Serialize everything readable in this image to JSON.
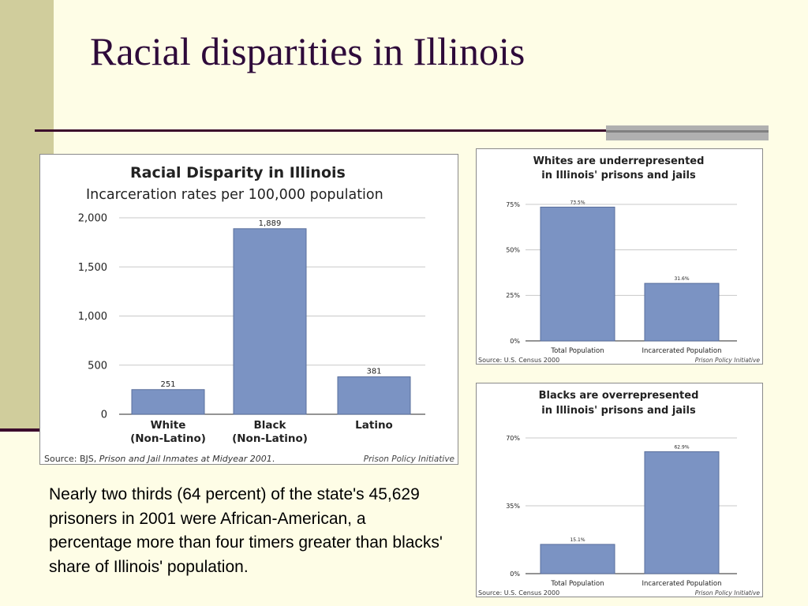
{
  "slide": {
    "title": "Racial disparities in Illinois",
    "body_text": "Nearly two thirds (64 percent) of the state's 45,629 prisoners in 2001 were African-American, a percentage more than four timers greater than blacks' share of Illinois' population."
  },
  "colors": {
    "bar_fill": "#7b93c3",
    "bar_stroke": "#5a6f9c",
    "title_color": "#2e0a3a",
    "background": "#fefde6",
    "left_band": "#d0cd9c"
  },
  "chart_data": [
    {
      "type": "bar",
      "title": "Racial Disparity in Illinois",
      "subtitle": "Incarceration rates per 100,000 population",
      "categories": [
        "White",
        "Black",
        "Latino"
      ],
      "category_sublabels": [
        "(Non-Latino)",
        "(Non-Latino)",
        ""
      ],
      "values": [
        251,
        1889,
        381
      ],
      "value_labels": [
        "251",
        "1,889",
        "381"
      ],
      "ylim": [
        0,
        2000
      ],
      "y_ticks": [
        0,
        500,
        1000,
        1500,
        2000
      ],
      "y_tick_labels": [
        "0",
        "500",
        "1,000",
        "1,500",
        "2,000"
      ],
      "grid": true,
      "source_prefix": "Source: BJS, ",
      "source_italic": "Prison and Jail Inmates at Midyear 2001",
      "source_suffix": ".",
      "credit": "Prison Policy Initiative"
    },
    {
      "type": "bar",
      "title_lines": [
        "Whites are underrepresented",
        "in Illinois' prisons and jails"
      ],
      "categories": [
        "Total Population",
        "Incarcerated Population"
      ],
      "values": [
        73.5,
        31.6
      ],
      "value_labels": [
        "73.5%",
        "31.6%"
      ],
      "ylim": [
        0,
        75
      ],
      "y_ticks": [
        0,
        25,
        50,
        75
      ],
      "y_tick_labels": [
        "0%",
        "25%",
        "50%",
        "75%"
      ],
      "grid": true,
      "source": "Source: U.S. Census 2000",
      "credit": "Prison Policy Initiative"
    },
    {
      "type": "bar",
      "title_lines": [
        "Blacks are overrepresented",
        "in Illinois' prisons and jails"
      ],
      "categories": [
        "Total Population",
        "Incarcerated Population"
      ],
      "values": [
        15.1,
        62.9
      ],
      "value_labels": [
        "15.1%",
        "62.9%"
      ],
      "ylim": [
        0,
        70
      ],
      "y_ticks": [
        0,
        35,
        70
      ],
      "y_tick_labels": [
        "0%",
        "35%",
        "70%"
      ],
      "grid": true,
      "source": "Source: U.S. Census 2000",
      "credit": "Prison Policy Initiative"
    }
  ]
}
